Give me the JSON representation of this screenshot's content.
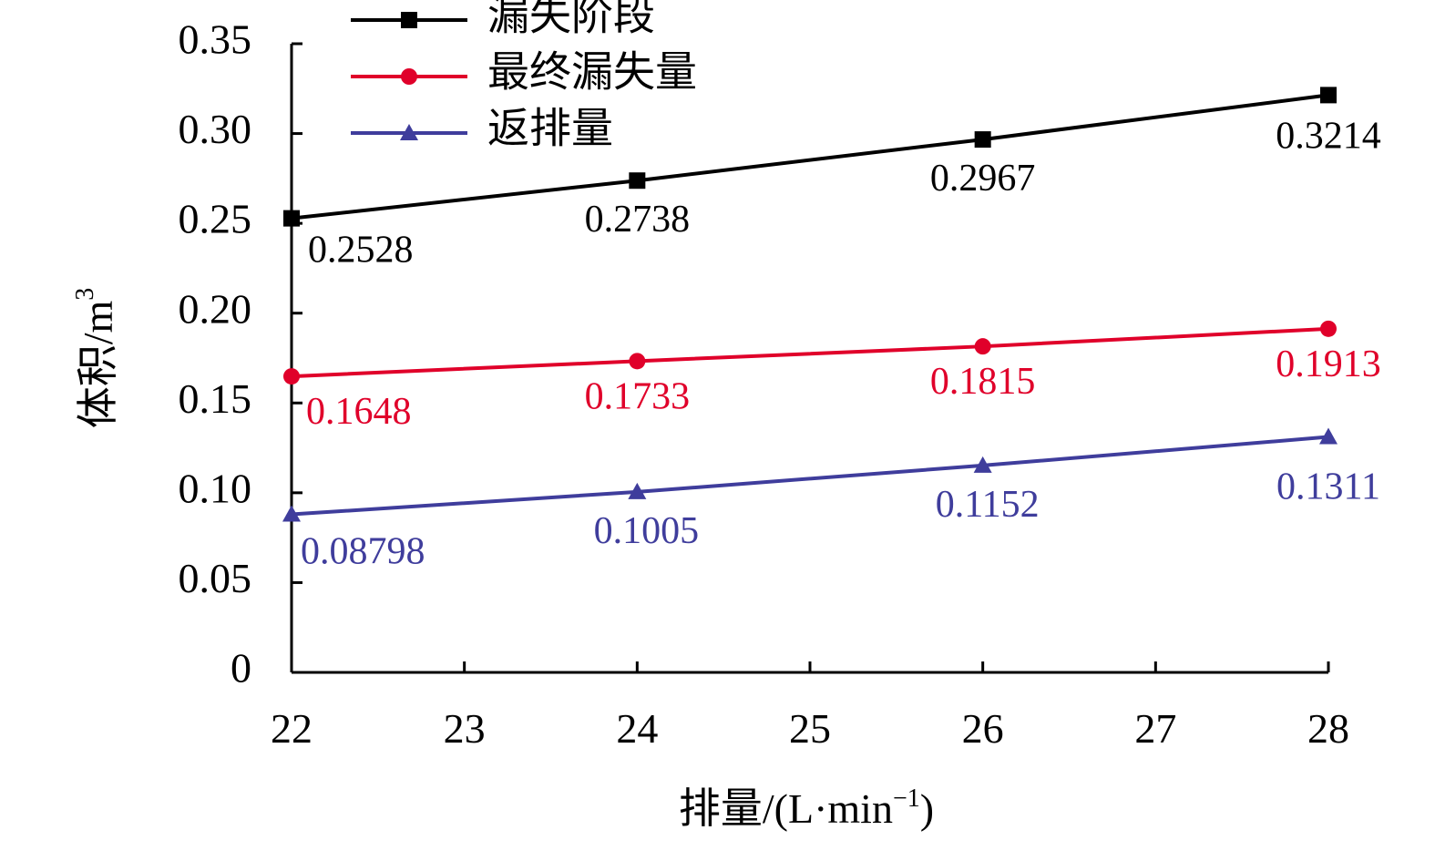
{
  "chart_data": {
    "type": "line",
    "title": "",
    "xlabel": "排量/(L·min",
    "xlabel_exp": "−1",
    "xlabel_tail": ")",
    "ylabel": "体积/m",
    "ylabel_exp": "3",
    "x": [
      22,
      24,
      26,
      28
    ],
    "xlim": [
      22,
      28
    ],
    "xticks": [
      "22",
      "23",
      "24",
      "25",
      "26",
      "27",
      "28"
    ],
    "ylim": [
      0,
      0.35
    ],
    "yticks": [
      "0",
      "0.05",
      "0.10",
      "0.15",
      "0.20",
      "0.25",
      "0.30",
      "0.35"
    ],
    "grid": false,
    "legend_position": "top-left",
    "series": [
      {
        "name": "漏失阶段",
        "color": "#000000",
        "marker": "square",
        "values": [
          0.2528,
          0.2738,
          0.2967,
          0.3214
        ],
        "labels": [
          "0.2528",
          "0.2738",
          "0.2967",
          "0.3214"
        ]
      },
      {
        "name": "最终漏失量",
        "color": "#e0002a",
        "marker": "circle",
        "values": [
          0.1648,
          0.1733,
          0.1815,
          0.1913
        ],
        "labels": [
          "0.1648",
          "0.1733",
          "0.1815",
          "0.1913"
        ]
      },
      {
        "name": "返排量",
        "color": "#3f3d9c",
        "marker": "triangle",
        "values": [
          0.08798,
          0.1005,
          0.1152,
          0.1311
        ],
        "labels": [
          "0.08798",
          "0.1005",
          "0.1152",
          "0.1311"
        ]
      }
    ]
  }
}
